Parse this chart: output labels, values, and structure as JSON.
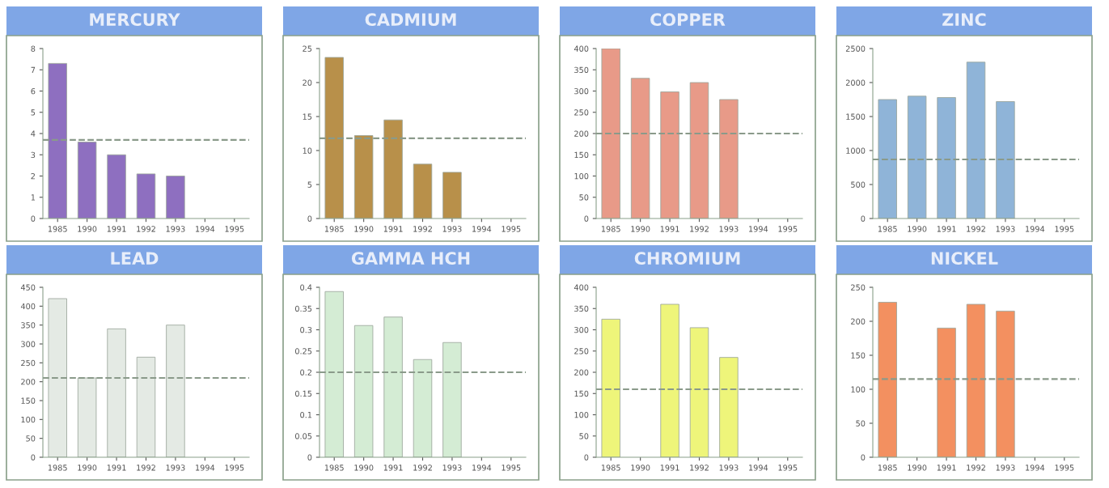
{
  "chart_data": [
    {
      "type": "bar",
      "title": "MERCURY",
      "categories": [
        "1985",
        "1990",
        "1991",
        "1992",
        "1993",
        "1994",
        "1995"
      ],
      "values": [
        7.3,
        3.6,
        3.0,
        2.1,
        2.0,
        null,
        null
      ],
      "color": "#8e6fc0",
      "ylim": [
        0,
        8
      ],
      "yticks": [
        0,
        1,
        2,
        3,
        4,
        5,
        6,
        7,
        8
      ],
      "ref_lines": [
        {
          "axis": "y",
          "value": 3.7,
          "color": "#8a9a8a",
          "line_style": "dashed"
        }
      ],
      "grid": false,
      "legend": false
    },
    {
      "type": "bar",
      "title": "CADMIUM",
      "categories": [
        "1985",
        "1990",
        "1991",
        "1992",
        "1993",
        "1994",
        "1995"
      ],
      "values": [
        23.7,
        12.2,
        14.5,
        8.0,
        6.8,
        null,
        null
      ],
      "color": "#b8904a",
      "ylim": [
        0,
        25
      ],
      "yticks": [
        0,
        5,
        10,
        15,
        20,
        25
      ],
      "ref_lines": [
        {
          "axis": "y",
          "value": 11.8,
          "color": "#8a9a8a",
          "line_style": "dashed"
        }
      ],
      "grid": false,
      "legend": false
    },
    {
      "type": "bar",
      "title": "COPPER",
      "categories": [
        "1985",
        "1990",
        "1991",
        "1992",
        "1993",
        "1994",
        "1995"
      ],
      "values": [
        400,
        330,
        298,
        320,
        280,
        null,
        null
      ],
      "color": "#e89a88",
      "ylim": [
        0,
        400
      ],
      "yticks": [
        0,
        50,
        100,
        150,
        200,
        250,
        300,
        350,
        400
      ],
      "ref_lines": [
        {
          "axis": "y",
          "value": 200,
          "color": "#8a9a8a",
          "line_style": "dashed"
        }
      ],
      "grid": false,
      "legend": false
    },
    {
      "type": "bar",
      "title": "ZINC",
      "categories": [
        "1985",
        "1990",
        "1991",
        "1992",
        "1993",
        "1994",
        "1995"
      ],
      "values": [
        1750,
        1800,
        1780,
        2300,
        1720,
        null,
        null
      ],
      "color": "#8fb4d8",
      "ylim": [
        0,
        2500
      ],
      "yticks": [
        0,
        500,
        1000,
        1500,
        2000,
        2500
      ],
      "ref_lines": [
        {
          "axis": "y",
          "value": 870,
          "color": "#8a9a8a",
          "line_style": "dashed"
        }
      ],
      "grid": false,
      "legend": false
    },
    {
      "type": "bar",
      "title": "LEAD",
      "categories": [
        "1985",
        "1990",
        "1991",
        "1992",
        "1993",
        "1994",
        "1995"
      ],
      "values": [
        420,
        210,
        340,
        265,
        350,
        null,
        null
      ],
      "color": "#e4eae4",
      "ylim": [
        0,
        450
      ],
      "yticks": [
        0,
        50,
        100,
        150,
        200,
        250,
        300,
        350,
        400,
        450
      ],
      "ref_lines": [
        {
          "axis": "y",
          "value": 210,
          "color": "#8a9a8a",
          "line_style": "dashed"
        }
      ],
      "grid": false,
      "legend": false
    },
    {
      "type": "bar",
      "title": "GAMMA HCH",
      "categories": [
        "1985",
        "1990",
        "1991",
        "1992",
        "1993",
        "1994",
        "1995"
      ],
      "values": [
        0.39,
        0.31,
        0.33,
        0.23,
        0.27,
        null,
        null
      ],
      "color": "#d4ecd4",
      "ylim": [
        0,
        0.4
      ],
      "yticks": [
        0,
        0.05,
        0.1,
        0.15,
        0.2,
        0.25,
        0.3,
        0.35,
        0.4
      ],
      "ref_lines": [
        {
          "axis": "y",
          "value": 0.2,
          "color": "#8a9a8a",
          "line_style": "dashed"
        }
      ],
      "grid": false,
      "legend": false
    },
    {
      "type": "bar",
      "title": "CHROMIUM",
      "categories": [
        "1985",
        "1990",
        "1991",
        "1992",
        "1993",
        "1994",
        "1995"
      ],
      "values": [
        325,
        null,
        360,
        305,
        235,
        null,
        null
      ],
      "color": "#eef57a",
      "ylim": [
        0,
        400
      ],
      "yticks": [
        0,
        50,
        100,
        150,
        200,
        250,
        300,
        350,
        400
      ],
      "ref_lines": [
        {
          "axis": "y",
          "value": 160,
          "color": "#8a9a8a",
          "line_style": "dashed"
        }
      ],
      "grid": false,
      "legend": false
    },
    {
      "type": "bar",
      "title": "NICKEL",
      "categories": [
        "1985",
        "1990",
        "1991",
        "1992",
        "1993",
        "1994",
        "1995"
      ],
      "values": [
        228,
        null,
        190,
        225,
        215,
        null,
        null
      ],
      "color": "#f39060",
      "ylim": [
        0,
        250
      ],
      "yticks": [
        0,
        50,
        100,
        150,
        200,
        250
      ],
      "ref_lines": [
        {
          "axis": "y",
          "value": 115,
          "color": "#8a9a8a",
          "line_style": "dashed"
        }
      ],
      "grid": false,
      "legend": false
    }
  ]
}
